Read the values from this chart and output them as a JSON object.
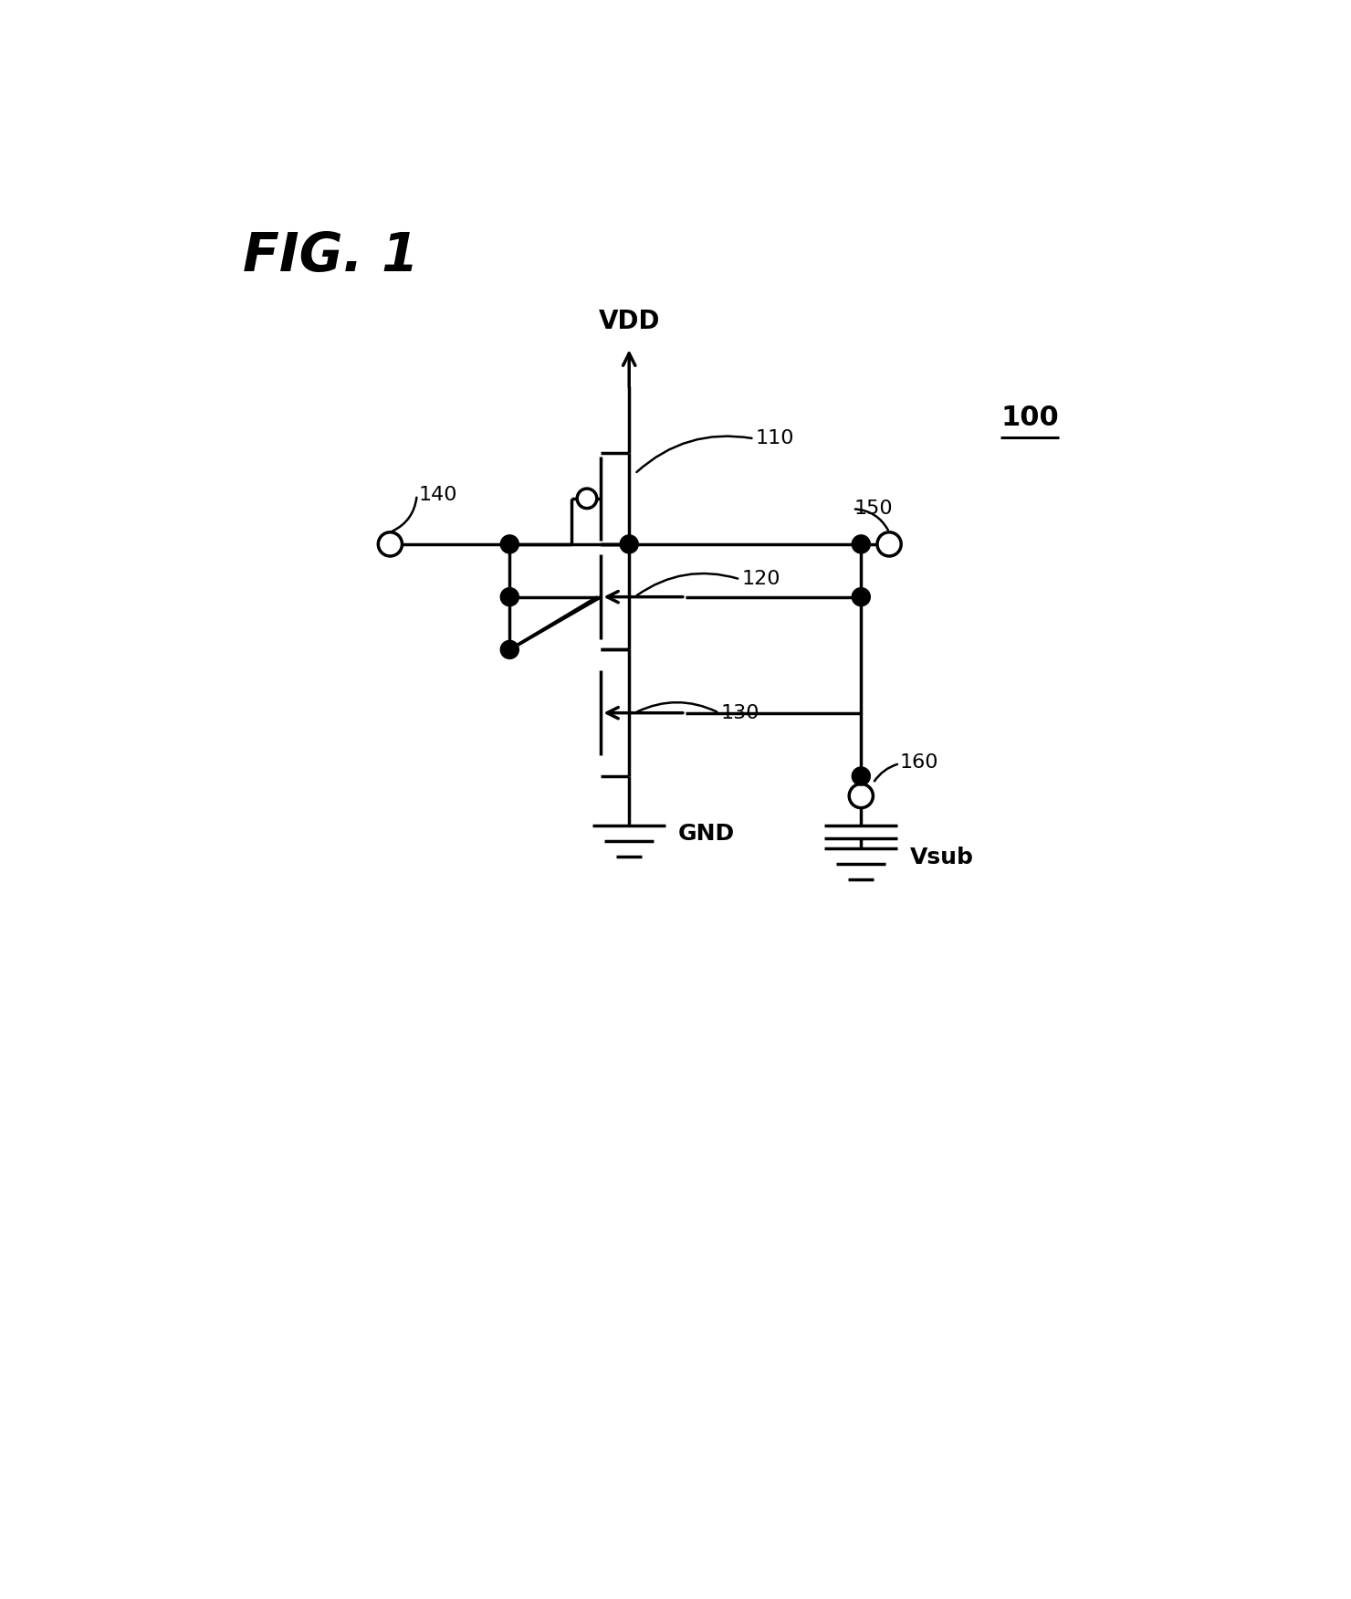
{
  "title": "FIG. 1",
  "label_100": "100",
  "label_110": "110",
  "label_120": "120",
  "label_130": "130",
  "label_140": "140",
  "label_150": "150",
  "label_160": "160",
  "label_VDD": "VDD",
  "label_GND": "GND",
  "label_Vsub": "Vsub",
  "bg_color": "#ffffff",
  "line_color": "#000000",
  "linewidth": 2.5,
  "fig_width": 14.8,
  "fig_height": 17.51
}
